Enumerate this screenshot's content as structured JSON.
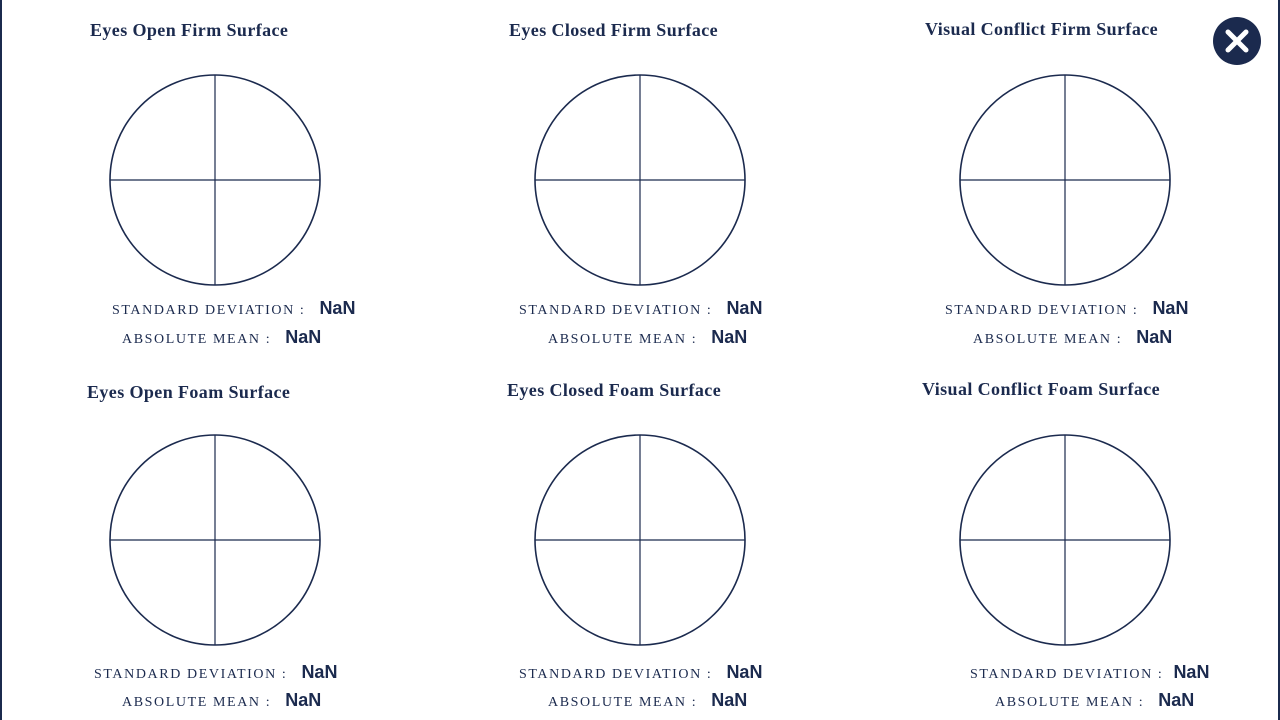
{
  "close_button": {
    "icon": "close-icon"
  },
  "stats_labels": {
    "std": "STANDARD DEVIATION :",
    "mean": "ABSOLUTE MEAN :"
  },
  "panels": [
    {
      "title": "Eyes Open Firm Surface",
      "std": "NaN",
      "mean": "NaN"
    },
    {
      "title": "Eyes Closed Firm Surface",
      "std": "NaN",
      "mean": "NaN"
    },
    {
      "title": "Visual Conflict Firm Surface",
      "std": "NaN",
      "mean": "NaN"
    },
    {
      "title": "Eyes Open Foam Surface",
      "std": "NaN",
      "mean": "NaN"
    },
    {
      "title": "Eyes Closed Foam Surface",
      "std": "NaN",
      "mean": "NaN"
    },
    {
      "title": "Visual Conflict Foam Surface",
      "std": "NaN",
      "mean": "NaN"
    }
  ],
  "colors": {
    "primary": "#1b2a4e",
    "background": "#ffffff"
  }
}
